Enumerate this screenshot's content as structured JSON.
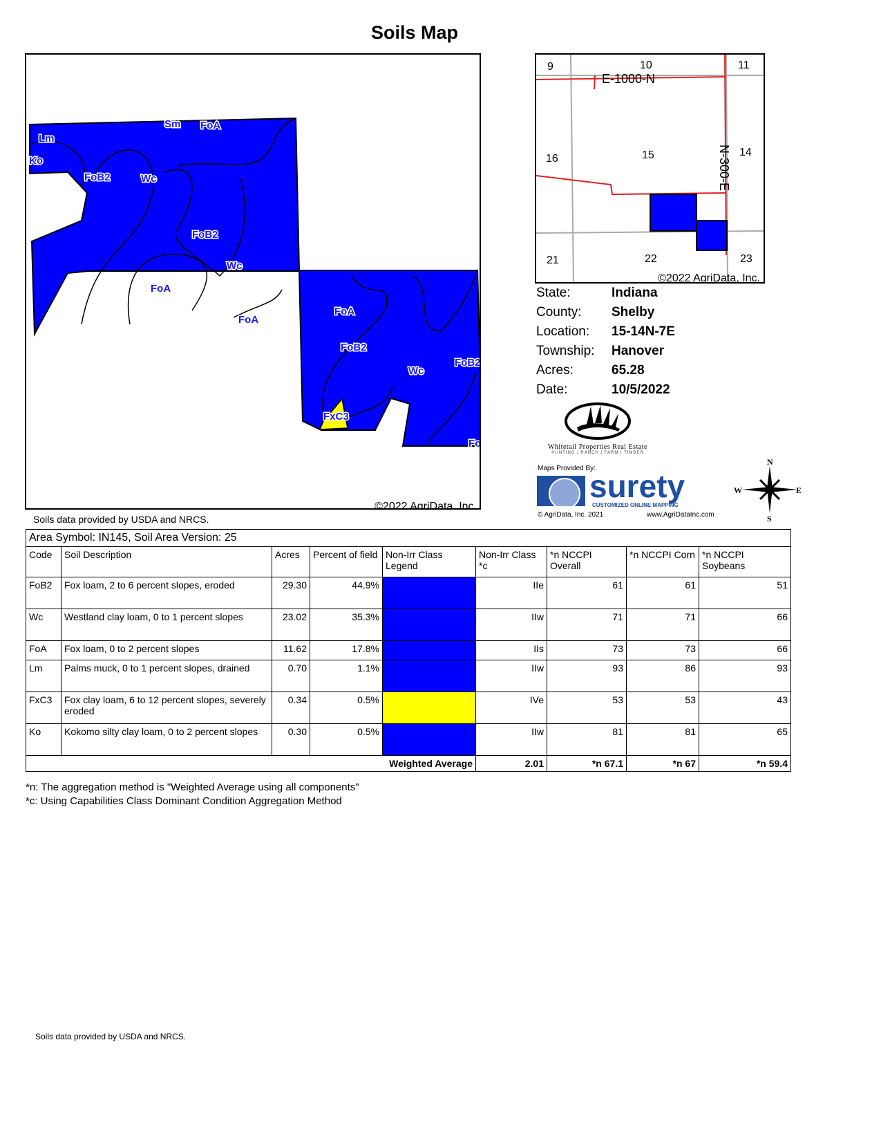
{
  "title": "Soils Map",
  "main_map": {
    "copyright": "©2022 AgriData, Inc.",
    "labels": [
      "Sm",
      "FoA",
      "Lm",
      "Ko",
      "FoB2",
      "Wc",
      "FoB2",
      "Wc",
      "FoA",
      "FoA",
      "FoA",
      "FoB2",
      "Wc",
      "FoB2",
      "FxC3",
      "Fo"
    ],
    "colors": {
      "blue": "#0000ff",
      "yellow": "#ffff00"
    }
  },
  "location_map": {
    "sections": [
      "9",
      "10",
      "11",
      "16",
      "15",
      "14",
      "21",
      "22",
      "23"
    ],
    "roads": [
      "E-1000-N",
      "N-300-E"
    ],
    "copyright": "©2022 AgriData, Inc."
  },
  "info": [
    {
      "k": "State:",
      "v": "Indiana"
    },
    {
      "k": "County:",
      "v": "Shelby"
    },
    {
      "k": "Location:",
      "v": "15-14N-7E"
    },
    {
      "k": "Township:",
      "v": "Hanover"
    },
    {
      "k": "Acres:",
      "v": "65.28"
    },
    {
      "k": "Date:",
      "v": "10/5/2022"
    }
  ],
  "logos": {
    "whitetail": "Whitetail Properties Real Estate",
    "whitetail_sub": "HUNTING | RANCH | FARM | TIMBER",
    "maps_by": "Maps Provided By:",
    "surety": "surety",
    "surety_sub": "CUSTOMIZED ONLINE MAPPING",
    "agri_c": "© AgriData, Inc. 2021",
    "agri_url": "www.AgriDataInc.com",
    "compass": [
      "N",
      "S",
      "W",
      "E"
    ]
  },
  "source_note": "Soils data provided by USDA and NRCS.",
  "table": {
    "area": "Area Symbol: IN145, Soil Area Version: 25",
    "headers": [
      "Code",
      "Soil Description",
      "Acres",
      "Percent of field",
      "Non-Irr Class Legend",
      "Non-Irr Class *c",
      "*n NCCPI Overall",
      "*n NCCPI Corn",
      "*n NCCPI Soybeans"
    ],
    "rows": [
      [
        "FoB2",
        "Fox loam, 2 to 6 percent slopes, eroded",
        "29.30",
        "44.9%",
        "#0000ff",
        "IIe",
        "61",
        "61",
        "51"
      ],
      [
        "Wc",
        "Westland clay loam, 0 to 1 percent slopes",
        "23.02",
        "35.3%",
        "#0000ff",
        "IIw",
        "71",
        "71",
        "66"
      ],
      [
        "FoA",
        "Fox loam, 0 to 2 percent slopes",
        "11.62",
        "17.8%",
        "#0000ff",
        "IIs",
        "73",
        "73",
        "66"
      ],
      [
        "Lm",
        "Palms muck, 0 to 1 percent slopes, drained",
        "0.70",
        "1.1%",
        "#0000ff",
        "IIw",
        "93",
        "86",
        "93"
      ],
      [
        "FxC3",
        "Fox clay loam, 6 to 12 percent slopes, severely eroded",
        "0.34",
        "0.5%",
        "#ffff00",
        "IVe",
        "53",
        "53",
        "43"
      ],
      [
        "Ko",
        "Kokomo silty clay loam, 0 to 2 percent slopes",
        "0.30",
        "0.5%",
        "#0000ff",
        "IIw",
        "81",
        "81",
        "65"
      ]
    ],
    "footer": {
      "label": "Weighted Average",
      "class": "2.01",
      "overall": "*n 67.1",
      "corn": "*n 67",
      "soy": "*n 59.4"
    }
  },
  "footnotes": [
    "*n: The aggregation method is \"Weighted Average using all components\"",
    "*c:  Using Capabilities Class Dominant Condition Aggregation Method"
  ],
  "bottom_note": "Soils data provided by USDA and NRCS."
}
